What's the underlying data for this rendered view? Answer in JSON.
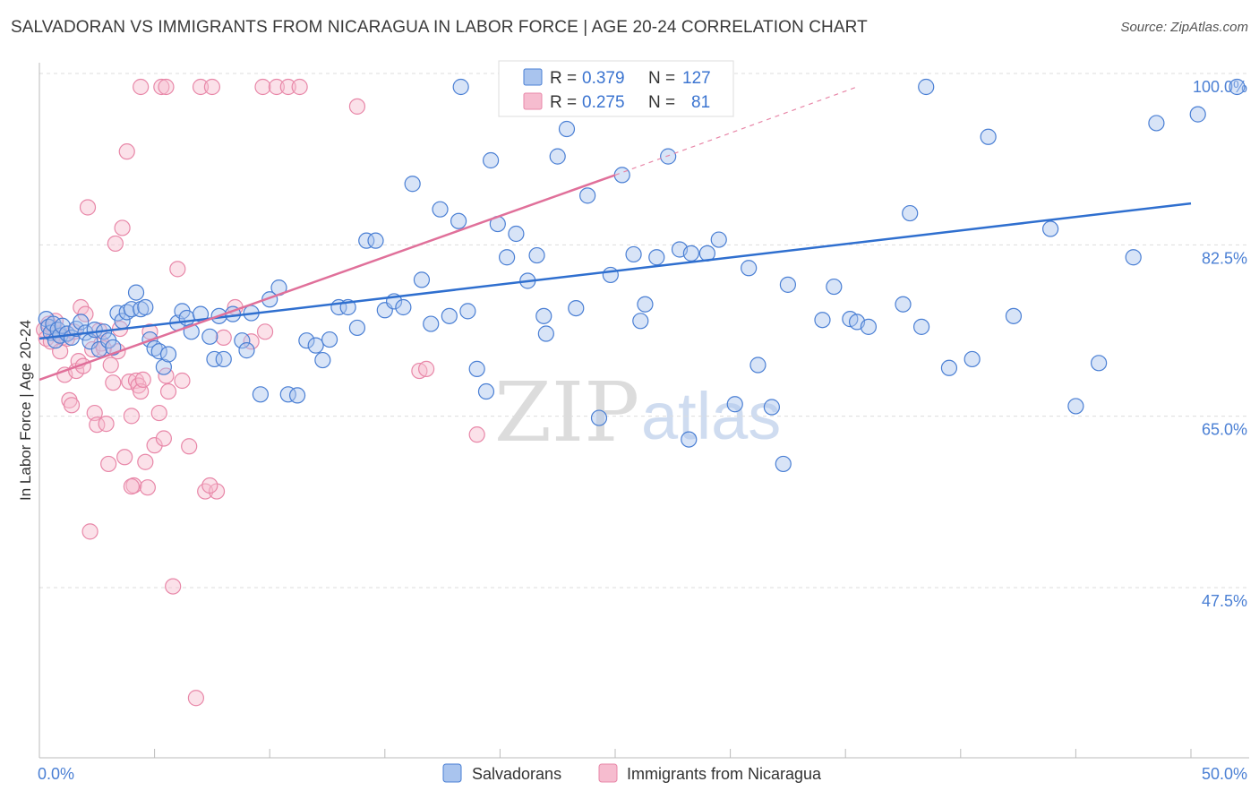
{
  "title": "SALVADORAN VS IMMIGRANTS FROM NICARAGUA IN LABOR FORCE | AGE 20-24 CORRELATION CHART",
  "source": "Source: ZipAtlas.com",
  "watermark": {
    "zip": "ZIP",
    "atlas": "atlas"
  },
  "colors": {
    "blue": "#4a7fd4",
    "blue_fill": "#a9c4ee",
    "blue_line": "#2f6fcf",
    "pink": "#e887a8",
    "pink_fill": "#f6bccf",
    "pink_line": "#e0709a",
    "grid": "#dddddd"
  },
  "legend_top": {
    "rows": [
      {
        "series": "Salvadorans",
        "r_label": "R =",
        "r_value": "0.379",
        "n_label": "N =",
        "n_value": "127"
      },
      {
        "series": "Immigrants from Nicaragua",
        "r_label": "R =",
        "r_value": "0.275",
        "n_label": "N =",
        "n_value": "81"
      }
    ]
  },
  "chart_data": {
    "type": "scatter",
    "title": "SALVADORAN VS IMMIGRANTS FROM NICARAGUA IN LABOR FORCE | AGE 20-24 CORRELATION CHART",
    "xlabel": "",
    "ylabel": "In Labor Force | Age 20-24",
    "xlim": [
      0,
      50
    ],
    "ylim": [
      31,
      101.5
    ],
    "x_tick_labels": [
      "0.0%",
      "50.0%"
    ],
    "y_ticks": [
      47.5,
      65.0,
      82.5,
      100.0
    ],
    "y_tick_labels": [
      "47.5%",
      "65.0%",
      "82.5%",
      "100.0%"
    ],
    "grid": true,
    "legend": "bottom",
    "series": [
      {
        "name": "Salvadorans",
        "trend": {
          "x": [
            0.0,
            50.0
          ],
          "y": [
            74.3,
            88.1
          ]
        },
        "points": [
          [
            0.3,
            76.3
          ],
          [
            0.4,
            75.5
          ],
          [
            0.5,
            74.9
          ],
          [
            0.6,
            75.8
          ],
          [
            0.7,
            74.1
          ],
          [
            0.8,
            75.2
          ],
          [
            0.9,
            74.6
          ],
          [
            1.0,
            75.6
          ],
          [
            1.2,
            74.8
          ],
          [
            1.4,
            74.4
          ],
          [
            1.6,
            75.3
          ],
          [
            1.8,
            76.0
          ],
          [
            2.0,
            74.9
          ],
          [
            2.2,
            74.0
          ],
          [
            2.4,
            75.2
          ],
          [
            2.6,
            73.2
          ],
          [
            2.8,
            75.0
          ],
          [
            3.0,
            74.1
          ],
          [
            3.2,
            73.4
          ],
          [
            3.4,
            76.9
          ],
          [
            3.6,
            76.1
          ],
          [
            3.8,
            77.0
          ],
          [
            4.0,
            77.3
          ],
          [
            4.2,
            79.0
          ],
          [
            4.4,
            77.3
          ],
          [
            4.6,
            77.5
          ],
          [
            4.8,
            74.2
          ],
          [
            5.0,
            73.3
          ],
          [
            5.2,
            73.0
          ],
          [
            5.4,
            71.4
          ],
          [
            5.6,
            72.7
          ],
          [
            6.0,
            75.9
          ],
          [
            6.2,
            77.1
          ],
          [
            6.4,
            76.4
          ],
          [
            6.6,
            75.0
          ],
          [
            7.0,
            76.8
          ],
          [
            7.4,
            74.5
          ],
          [
            7.6,
            72.2
          ],
          [
            7.8,
            76.6
          ],
          [
            8.0,
            72.2
          ],
          [
            8.4,
            76.8
          ],
          [
            8.8,
            74.1
          ],
          [
            9.0,
            73.1
          ],
          [
            9.2,
            76.9
          ],
          [
            9.6,
            68.6
          ],
          [
            10.0,
            78.3
          ],
          [
            10.4,
            79.5
          ],
          [
            10.8,
            68.6
          ],
          [
            11.2,
            68.5
          ],
          [
            11.6,
            74.1
          ],
          [
            12.0,
            73.6
          ],
          [
            12.3,
            72.1
          ],
          [
            12.6,
            74.2
          ],
          [
            13.0,
            77.5
          ],
          [
            13.4,
            77.5
          ],
          [
            13.8,
            75.4
          ],
          [
            14.2,
            84.3
          ],
          [
            14.6,
            84.3
          ],
          [
            15.0,
            77.2
          ],
          [
            15.4,
            78.1
          ],
          [
            15.8,
            77.5
          ],
          [
            16.2,
            90.1
          ],
          [
            16.6,
            80.3
          ],
          [
            17.0,
            75.8
          ],
          [
            17.4,
            87.5
          ],
          [
            17.8,
            76.6
          ],
          [
            18.2,
            86.3
          ],
          [
            18.6,
            77.1
          ],
          [
            19.0,
            71.2
          ],
          [
            19.4,
            68.9
          ],
          [
            19.6,
            92.5
          ],
          [
            19.9,
            86.0
          ],
          [
            20.3,
            82.6
          ],
          [
            20.7,
            85.0
          ],
          [
            21.2,
            80.2
          ],
          [
            21.6,
            82.8
          ],
          [
            22.0,
            74.8
          ],
          [
            22.5,
            92.9
          ],
          [
            22.9,
            95.7
          ],
          [
            23.3,
            77.4
          ],
          [
            23.8,
            88.9
          ],
          [
            24.3,
            66.2
          ],
          [
            24.8,
            80.8
          ],
          [
            25.3,
            91.0
          ],
          [
            25.8,
            82.9
          ],
          [
            26.3,
            77.8
          ],
          [
            26.8,
            82.6
          ],
          [
            27.3,
            92.9
          ],
          [
            27.8,
            83.4
          ],
          [
            28.3,
            83.0
          ],
          [
            29.0,
            83.0
          ],
          [
            29.5,
            84.4
          ],
          [
            30.2,
            67.6
          ],
          [
            30.8,
            81.5
          ],
          [
            31.2,
            71.6
          ],
          [
            31.8,
            67.3
          ],
          [
            32.3,
            61.5
          ],
          [
            34.0,
            76.2
          ],
          [
            34.5,
            79.6
          ],
          [
            35.2,
            76.3
          ],
          [
            35.5,
            76.0
          ],
          [
            36.0,
            75.5
          ],
          [
            37.5,
            77.8
          ],
          [
            37.8,
            87.1
          ],
          [
            38.3,
            75.5
          ],
          [
            39.5,
            71.3
          ],
          [
            40.5,
            72.2
          ],
          [
            41.2,
            94.9
          ],
          [
            42.3,
            76.6
          ],
          [
            43.9,
            85.5
          ],
          [
            45.0,
            67.4
          ],
          [
            46.0,
            71.8
          ],
          [
            47.5,
            82.6
          ],
          [
            38.5,
            100.0
          ],
          [
            18.3,
            100.0
          ],
          [
            52.0,
            100.0
          ],
          [
            50.3,
            97.2
          ],
          [
            48.5,
            96.3
          ],
          [
            32.5,
            79.8
          ],
          [
            26.1,
            76.1
          ],
          [
            21.9,
            76.6
          ],
          [
            28.2,
            64.0
          ]
        ]
      },
      {
        "name": "Immigrants from Nicaragua",
        "trend": {
          "x": [
            0.0,
            25.0
          ],
          "y": [
            70.1,
            91.0
          ]
        },
        "trend_extension": {
          "x": [
            25.0,
            35.5
          ],
          "y": [
            91.0,
            100.0
          ]
        },
        "points": [
          [
            0.2,
            75.2
          ],
          [
            0.3,
            74.3
          ],
          [
            0.4,
            75.8
          ],
          [
            0.5,
            74.0
          ],
          [
            0.6,
            75.3
          ],
          [
            0.7,
            76.1
          ],
          [
            0.8,
            74.8
          ],
          [
            0.9,
            73.0
          ],
          [
            1.0,
            74.4
          ],
          [
            1.1,
            70.6
          ],
          [
            1.2,
            74.3
          ],
          [
            1.3,
            68.0
          ],
          [
            1.4,
            67.5
          ],
          [
            1.5,
            75.0
          ],
          [
            1.6,
            71.0
          ],
          [
            1.7,
            72.0
          ],
          [
            1.8,
            77.5
          ],
          [
            1.9,
            71.5
          ],
          [
            2.0,
            76.8
          ],
          [
            2.1,
            87.7
          ],
          [
            2.2,
            54.6
          ],
          [
            2.3,
            73.2
          ],
          [
            2.4,
            66.7
          ],
          [
            2.5,
            65.5
          ],
          [
            2.6,
            75.1
          ],
          [
            2.7,
            73.8
          ],
          [
            2.8,
            73.3
          ],
          [
            2.9,
            65.6
          ],
          [
            3.0,
            61.5
          ],
          [
            3.1,
            71.6
          ],
          [
            3.2,
            69.8
          ],
          [
            3.3,
            84.0
          ],
          [
            3.4,
            73.0
          ],
          [
            3.5,
            75.3
          ],
          [
            3.6,
            85.6
          ],
          [
            3.7,
            62.2
          ],
          [
            3.8,
            93.4
          ],
          [
            3.9,
            69.9
          ],
          [
            4.0,
            66.4
          ],
          [
            4.1,
            59.3
          ],
          [
            4.2,
            70.0
          ],
          [
            4.3,
            69.5
          ],
          [
            4.4,
            68.9
          ],
          [
            4.5,
            70.1
          ],
          [
            4.6,
            61.7
          ],
          [
            4.7,
            59.1
          ],
          [
            4.8,
            75.0
          ],
          [
            5.0,
            63.4
          ],
          [
            5.2,
            66.7
          ],
          [
            5.4,
            64.1
          ],
          [
            5.5,
            70.5
          ],
          [
            5.6,
            68.9
          ],
          [
            5.8,
            49.0
          ],
          [
            6.0,
            81.4
          ],
          [
            6.2,
            70.0
          ],
          [
            6.5,
            63.3
          ],
          [
            6.8,
            37.6
          ],
          [
            7.2,
            58.7
          ],
          [
            7.7,
            58.7
          ],
          [
            8.0,
            74.4
          ],
          [
            8.5,
            77.5
          ],
          [
            9.2,
            74.0
          ],
          [
            9.8,
            75.0
          ],
          [
            4.4,
            100.0
          ],
          [
            5.3,
            100.0
          ],
          [
            5.5,
            100.0
          ],
          [
            7.0,
            100.0
          ],
          [
            7.5,
            100.0
          ],
          [
            9.7,
            100.0
          ],
          [
            10.3,
            100.0
          ],
          [
            10.8,
            100.0
          ],
          [
            11.3,
            100.0
          ],
          [
            13.8,
            98.0
          ],
          [
            16.5,
            71.0
          ],
          [
            16.8,
            71.2
          ],
          [
            19.0,
            64.5
          ],
          [
            20.6,
            100.0
          ],
          [
            23.5,
            100.0
          ],
          [
            27.1,
            100.0
          ],
          [
            4.0,
            59.2
          ],
          [
            7.4,
            59.3
          ]
        ]
      }
    ]
  }
}
